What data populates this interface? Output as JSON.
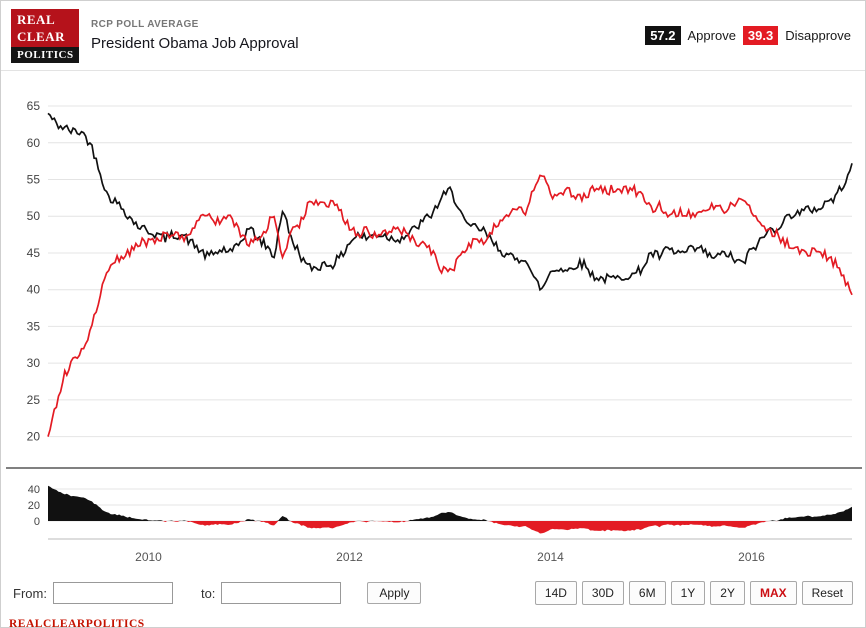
{
  "header": {
    "kicker": "RCP POLL AVERAGE",
    "title": "President Obama Job Approval",
    "logo_lines": [
      "REAL",
      "CLEAR",
      "POLITICS"
    ],
    "legend": [
      {
        "value": "57.2",
        "label": "Approve",
        "color": "#111111"
      },
      {
        "value": "39.3",
        "label": "Disapprove",
        "color": "#e31b23"
      }
    ]
  },
  "chart_data": {
    "type": "line",
    "title": "President Obama Job Approval",
    "x_start": "2009-01",
    "x_interval": "month",
    "x_tick_labels": [
      "2010",
      "2012",
      "2014",
      "2016"
    ],
    "y_ticks_main": [
      20,
      25,
      30,
      35,
      40,
      45,
      50,
      55,
      60,
      65
    ],
    "ylim_main": [
      17.5,
      66.5
    ],
    "grid": true,
    "legend_position": "top-right",
    "series": [
      {
        "name": "Approve",
        "color": "#111111",
        "final": 57.2,
        "values": [
          64,
          62.5,
          62,
          61.5,
          61.5,
          60,
          57,
          53,
          52,
          51,
          49.5,
          48.5,
          48,
          47.5,
          47,
          47.5,
          47.5,
          46.5,
          45.5,
          44.5,
          45,
          45.5,
          45,
          46.5,
          48.5,
          47,
          46,
          44.5,
          51,
          47,
          45,
          43,
          43,
          43.5,
          43.5,
          44.5,
          46.5,
          47.5,
          47,
          47.5,
          47.5,
          47,
          47,
          47.5,
          48.5,
          49.5,
          50.5,
          52.5,
          53.5,
          51.5,
          48.5,
          48.5,
          48,
          46.5,
          45.5,
          44.5,
          44,
          44.5,
          41.5,
          40,
          42.5,
          43,
          42.5,
          43.5,
          43.5,
          42,
          41.5,
          41.5,
          41.5,
          42,
          42,
          43,
          45,
          44.5,
          45.5,
          45,
          45,
          45.5,
          45.5,
          44.5,
          44.5,
          45,
          44,
          43.5,
          45.5,
          46.5,
          48,
          48.5,
          49.5,
          50.5,
          50.5,
          51,
          51,
          52,
          52.5,
          54.5,
          57.2
        ]
      },
      {
        "name": "Disapprove",
        "color": "#e31b23",
        "final": 39.3,
        "values": [
          20,
          24.5,
          28.5,
          30.5,
          31.5,
          34,
          38,
          42.5,
          44,
          44.5,
          45.5,
          46.5,
          46.5,
          46.5,
          47.5,
          47.5,
          47,
          48,
          49.5,
          50,
          49.5,
          49.5,
          49.5,
          47.5,
          46,
          47,
          48,
          50.5,
          44,
          47.5,
          49,
          51.5,
          52,
          51.5,
          51.5,
          50.5,
          48.5,
          47.5,
          48,
          47.5,
          47.5,
          48,
          48,
          47.5,
          46.5,
          46.5,
          45,
          42.5,
          42.5,
          44,
          46,
          46.5,
          46.5,
          48,
          49.5,
          50.5,
          51,
          50.5,
          53.5,
          55.5,
          53,
          53,
          53.5,
          52.5,
          52.5,
          53.5,
          54,
          53.5,
          54,
          53.5,
          53.5,
          52.5,
          51,
          51.5,
          50.5,
          50.5,
          50.5,
          50,
          50,
          51,
          51.5,
          50.5,
          52,
          52.5,
          50.5,
          49.5,
          48,
          47.5,
          46.5,
          45.5,
          45.5,
          45,
          45.5,
          44.5,
          43.5,
          41.5,
          39.3
        ]
      }
    ],
    "spread_panel": {
      "derivation": "Approve minus Disapprove",
      "y_ticks": [
        0,
        20,
        40
      ],
      "positive_color": "#111111",
      "negative_color": "#e31b23"
    }
  },
  "controls": {
    "from_label": "From:",
    "from_value": "",
    "to_label": "to:",
    "to_value": "",
    "apply_label": "Apply",
    "range_buttons": [
      "14D",
      "30D",
      "6M",
      "1Y",
      "2Y",
      "MAX",
      "Reset"
    ],
    "active_range": "MAX"
  },
  "footer": {
    "brand": "REALCLEARPOLITICS"
  }
}
